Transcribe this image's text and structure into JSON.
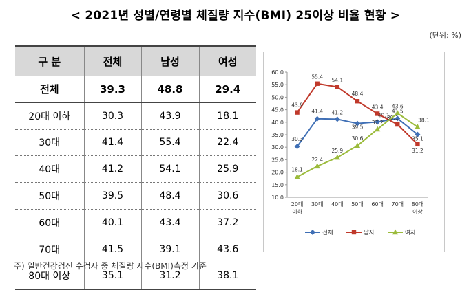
{
  "title": "< 2021년 성별/연령별 체질량 지수(BMI) 25이상 비율 현황 >",
  "unit": "(단위: %)",
  "table": {
    "headers": [
      "구 분",
      "전체",
      "남성",
      "여성"
    ],
    "rows": [
      [
        "전체",
        "39.3",
        "48.8",
        "29.4"
      ],
      [
        "20대 이하",
        "30.3",
        "43.9",
        "18.1"
      ],
      [
        "30대",
        "41.4",
        "55.4",
        "22.4"
      ],
      [
        "40대",
        "41.2",
        "54.1",
        "25.9"
      ],
      [
        "50대",
        "39.5",
        "48.4",
        "30.6"
      ],
      [
        "60대",
        "40.1",
        "43.4",
        "37.2"
      ],
      [
        "70대",
        "41.5",
        "39.1",
        "43.6"
      ],
      [
        "80대 이상",
        "35.1",
        "31.2",
        "38.1"
      ]
    ]
  },
  "chart_data": {
    "type": "line",
    "categories": [
      "20대 이하",
      "30대",
      "40대",
      "50대",
      "60대",
      "70대",
      "80대 이상"
    ],
    "category_lines": [
      [
        "20대",
        "이하"
      ],
      [
        "30대"
      ],
      [
        "40대"
      ],
      [
        "50대"
      ],
      [
        "60대"
      ],
      [
        "70대"
      ],
      [
        "80대",
        "이상"
      ]
    ],
    "series": [
      {
        "name": "전체",
        "values": [
          30.3,
          41.4,
          41.2,
          39.5,
          40.1,
          41.5,
          35.1
        ],
        "color": "#3f6fb5",
        "marker": "diamond"
      },
      {
        "name": "남자",
        "values": [
          43.9,
          55.4,
          54.1,
          48.4,
          43.4,
          39.1,
          31.2
        ],
        "color": "#c0392b",
        "marker": "square"
      },
      {
        "name": "여자",
        "values": [
          18.1,
          22.4,
          25.9,
          30.6,
          37.2,
          43.6,
          38.1
        ],
        "color": "#9bbb3b",
        "marker": "triangle"
      }
    ],
    "ylim": [
      10.0,
      60.0
    ],
    "yticks": [
      "10.0",
      "15.0",
      "20.0",
      "25.0",
      "30.0",
      "35.0",
      "40.0",
      "45.0",
      "50.0",
      "55.0",
      "60.0"
    ],
    "grid": false,
    "legend": "bottom",
    "title": "",
    "xlabel": "",
    "ylabel": ""
  },
  "footnote": "주) 일반건강검진 수검자 중 체질량 지수(BMI)측정 기준"
}
